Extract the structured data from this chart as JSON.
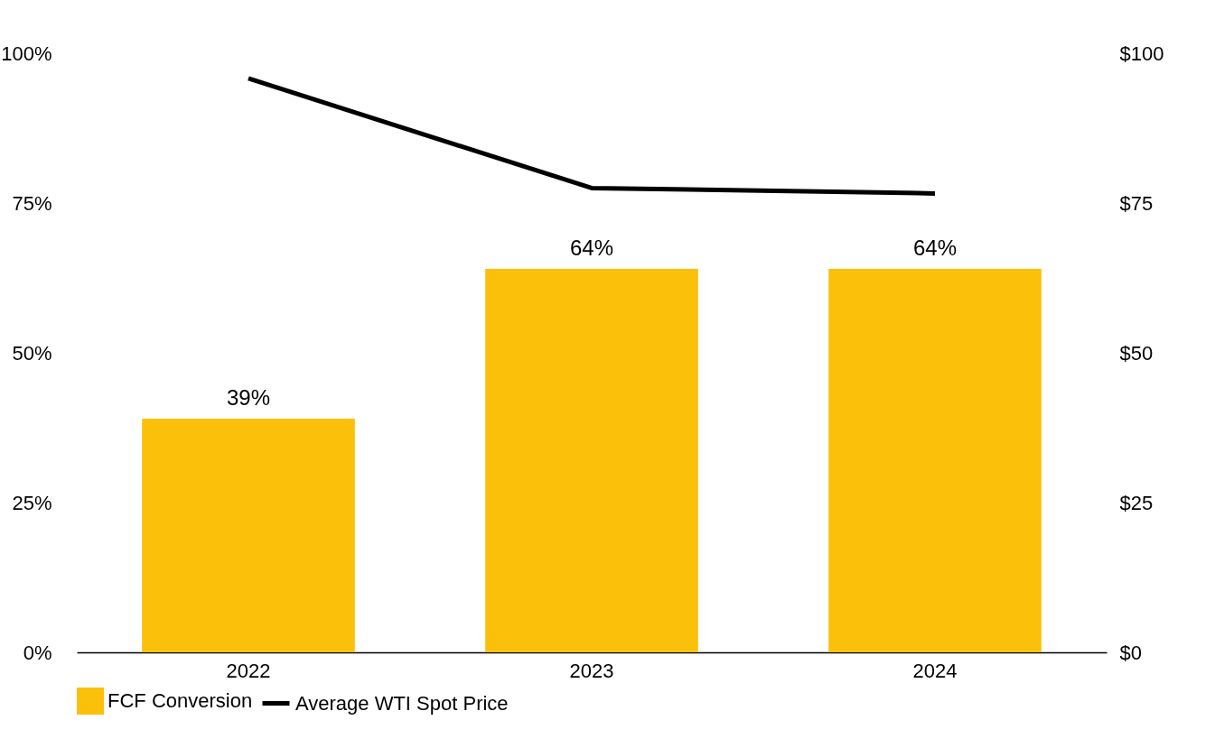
{
  "chart_data": {
    "type": "bar",
    "categories": [
      "2022",
      "2023",
      "2024"
    ],
    "series": [
      {
        "name": "FCF Conversion",
        "color": "#fac00a",
        "values": [
          39,
          64,
          64
        ],
        "value_labels": [
          "39%",
          "64%",
          "64%"
        ]
      },
      {
        "name": "Average WTI Spot Price",
        "type": "line",
        "axis": "y2",
        "color": "#000000",
        "values": [
          95.8,
          77.5,
          76.6
        ]
      }
    ],
    "ylim": [
      0,
      100
    ],
    "yticks": [
      {
        "value": 0,
        "label": "0%"
      },
      {
        "value": 25,
        "label": "25%"
      },
      {
        "value": 50,
        "label": "50%"
      },
      {
        "value": 75,
        "label": "75%"
      },
      {
        "value": 100,
        "label": "100%"
      }
    ],
    "y2lim": [
      0,
      100
    ],
    "y2ticks": [
      {
        "value": 0,
        "label": "$0"
      },
      {
        "value": 25,
        "label": "$25"
      },
      {
        "value": 50,
        "label": "$50"
      },
      {
        "value": 75,
        "label": "$75"
      },
      {
        "value": 100,
        "label": "$100"
      }
    ],
    "grid": false,
    "legend": "bottom",
    "marker": "none",
    "line_style": "solid"
  }
}
